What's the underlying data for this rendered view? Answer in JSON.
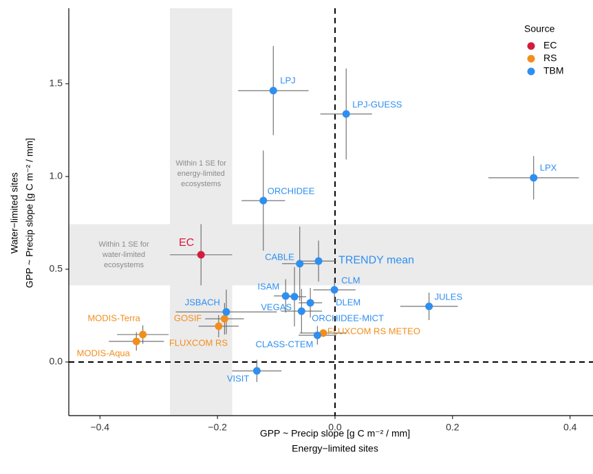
{
  "chart_data": {
    "type": "scatter",
    "x_label": "GPP ~ Precip slope [g C m⁻² / mm]",
    "x_label_2": "Energy−limited sites",
    "y_label": "Water−limited sites",
    "y_label_2": "GPP ~ Precip slope [g C m⁻² / mm]",
    "xlim": [
      -0.453,
      0.439
    ],
    "ylim": [
      -0.289,
      1.907
    ],
    "xticks": [
      {
        "value": -0.4,
        "label": "−0.4"
      },
      {
        "value": -0.2,
        "label": "−0.2"
      },
      {
        "value": 0,
        "label": "0.0"
      },
      0.2,
      0.4
    ],
    "yticks": [
      {
        "value": 0,
        "label": "0.0"
      },
      0.5,
      {
        "value": 1,
        "label": "1.0"
      },
      1.5
    ],
    "hlines": [
      0
    ],
    "vlines": [
      0
    ],
    "annotations": [
      {
        "lines": [
          "Within 1 SE for",
          "energy-limited",
          "ecosystems"
        ]
      },
      {
        "lines": [
          "Within 1 SE for",
          "water-limited",
          "ecosystems"
        ]
      }
    ],
    "legend_title": "Source",
    "legend_position": "top-right",
    "series": [
      {
        "name": "EC",
        "color": "#d41c3c",
        "labels": [
          "EC"
        ],
        "x": [
          -0.228
        ],
        "y": [
          0.578
        ],
        "xerr": [
          0.053
        ],
        "yerr": [
          0.165
        ]
      },
      {
        "name": "RS",
        "color": "#f28e1c",
        "labels": [
          "MODIS-Terra",
          "MODIS-Aqua",
          "GOSIF",
          "FLUXCOM RS",
          "FLUXCOM RS METEO"
        ],
        "x": [
          -0.327,
          -0.338,
          -0.188,
          -0.198,
          -0.02
        ],
        "y": [
          0.148,
          0.111,
          0.233,
          0.193,
          0.156
        ],
        "xerr": [
          0.044,
          0.047,
          0.033,
          0.034,
          0.04
        ],
        "yerr": [
          0.05,
          0.05,
          0.085,
          0.06,
          0.02
        ]
      },
      {
        "name": "TBM",
        "color": "#2e8ff0",
        "labels": [
          "LPJ",
          "LPJ-GUESS",
          "LPX",
          "ORCHIDEE",
          "CABLE",
          "TRENDY mean",
          "CLM",
          "ISAM",
          "VEGAS",
          "DLEM",
          "ORCHIDEE-MICT",
          "JSBACH",
          "JULES",
          "CLASS-CTEM",
          "VISIT"
        ],
        "x": [
          -0.105,
          0.019,
          0.338,
          -0.122,
          -0.06,
          -0.028,
          -0.001,
          -0.084,
          -0.069,
          -0.042,
          -0.057,
          -0.185,
          0.16,
          -0.03,
          -0.133
        ],
        "y": [
          1.463,
          1.337,
          0.993,
          0.87,
          0.53,
          0.544,
          0.389,
          0.356,
          0.352,
          0.319,
          0.274,
          0.27,
          0.3,
          0.144,
          -0.048
        ],
        "xerr": [
          0.06,
          0.044,
          0.077,
          0.037,
          0.03,
          0.03,
          0.036,
          0.02,
          0.02,
          0.02,
          0.035,
          0.086,
          0.049,
          0.032,
          0.042
        ],
        "yerr": [
          0.24,
          0.245,
          0.117,
          0.27,
          0.2,
          0.11,
          0.06,
          0.09,
          0.16,
          0.08,
          0.12,
          0.12,
          0.074,
          0.05,
          0.06
        ]
      }
    ]
  }
}
